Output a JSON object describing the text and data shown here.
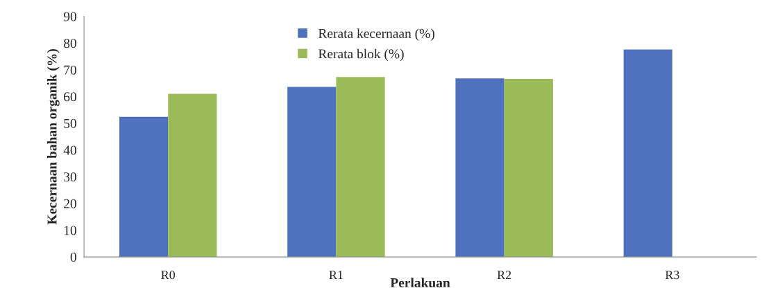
{
  "chart_data": {
    "type": "bar",
    "xlabel": "Perlakuan",
    "ylabel": "Kecernaan bahan organik (%)",
    "categories": [
      "R0",
      "R1",
      "R2",
      "R3"
    ],
    "series": [
      {
        "name": "Rerata kecernaan (%)",
        "color": "#4e72bd",
        "values": [
          52.4,
          63.6,
          66.8,
          77.6
        ]
      },
      {
        "name": "Rerata blok (%)",
        "color": "#9bbb59",
        "values": [
          61.0,
          67.3,
          66.6,
          null
        ]
      }
    ],
    "ylim": [
      0,
      90
    ],
    "yticks": [
      0,
      10,
      20,
      30,
      40,
      50,
      60,
      70,
      80,
      90
    ],
    "grid": false,
    "legend": "top"
  }
}
